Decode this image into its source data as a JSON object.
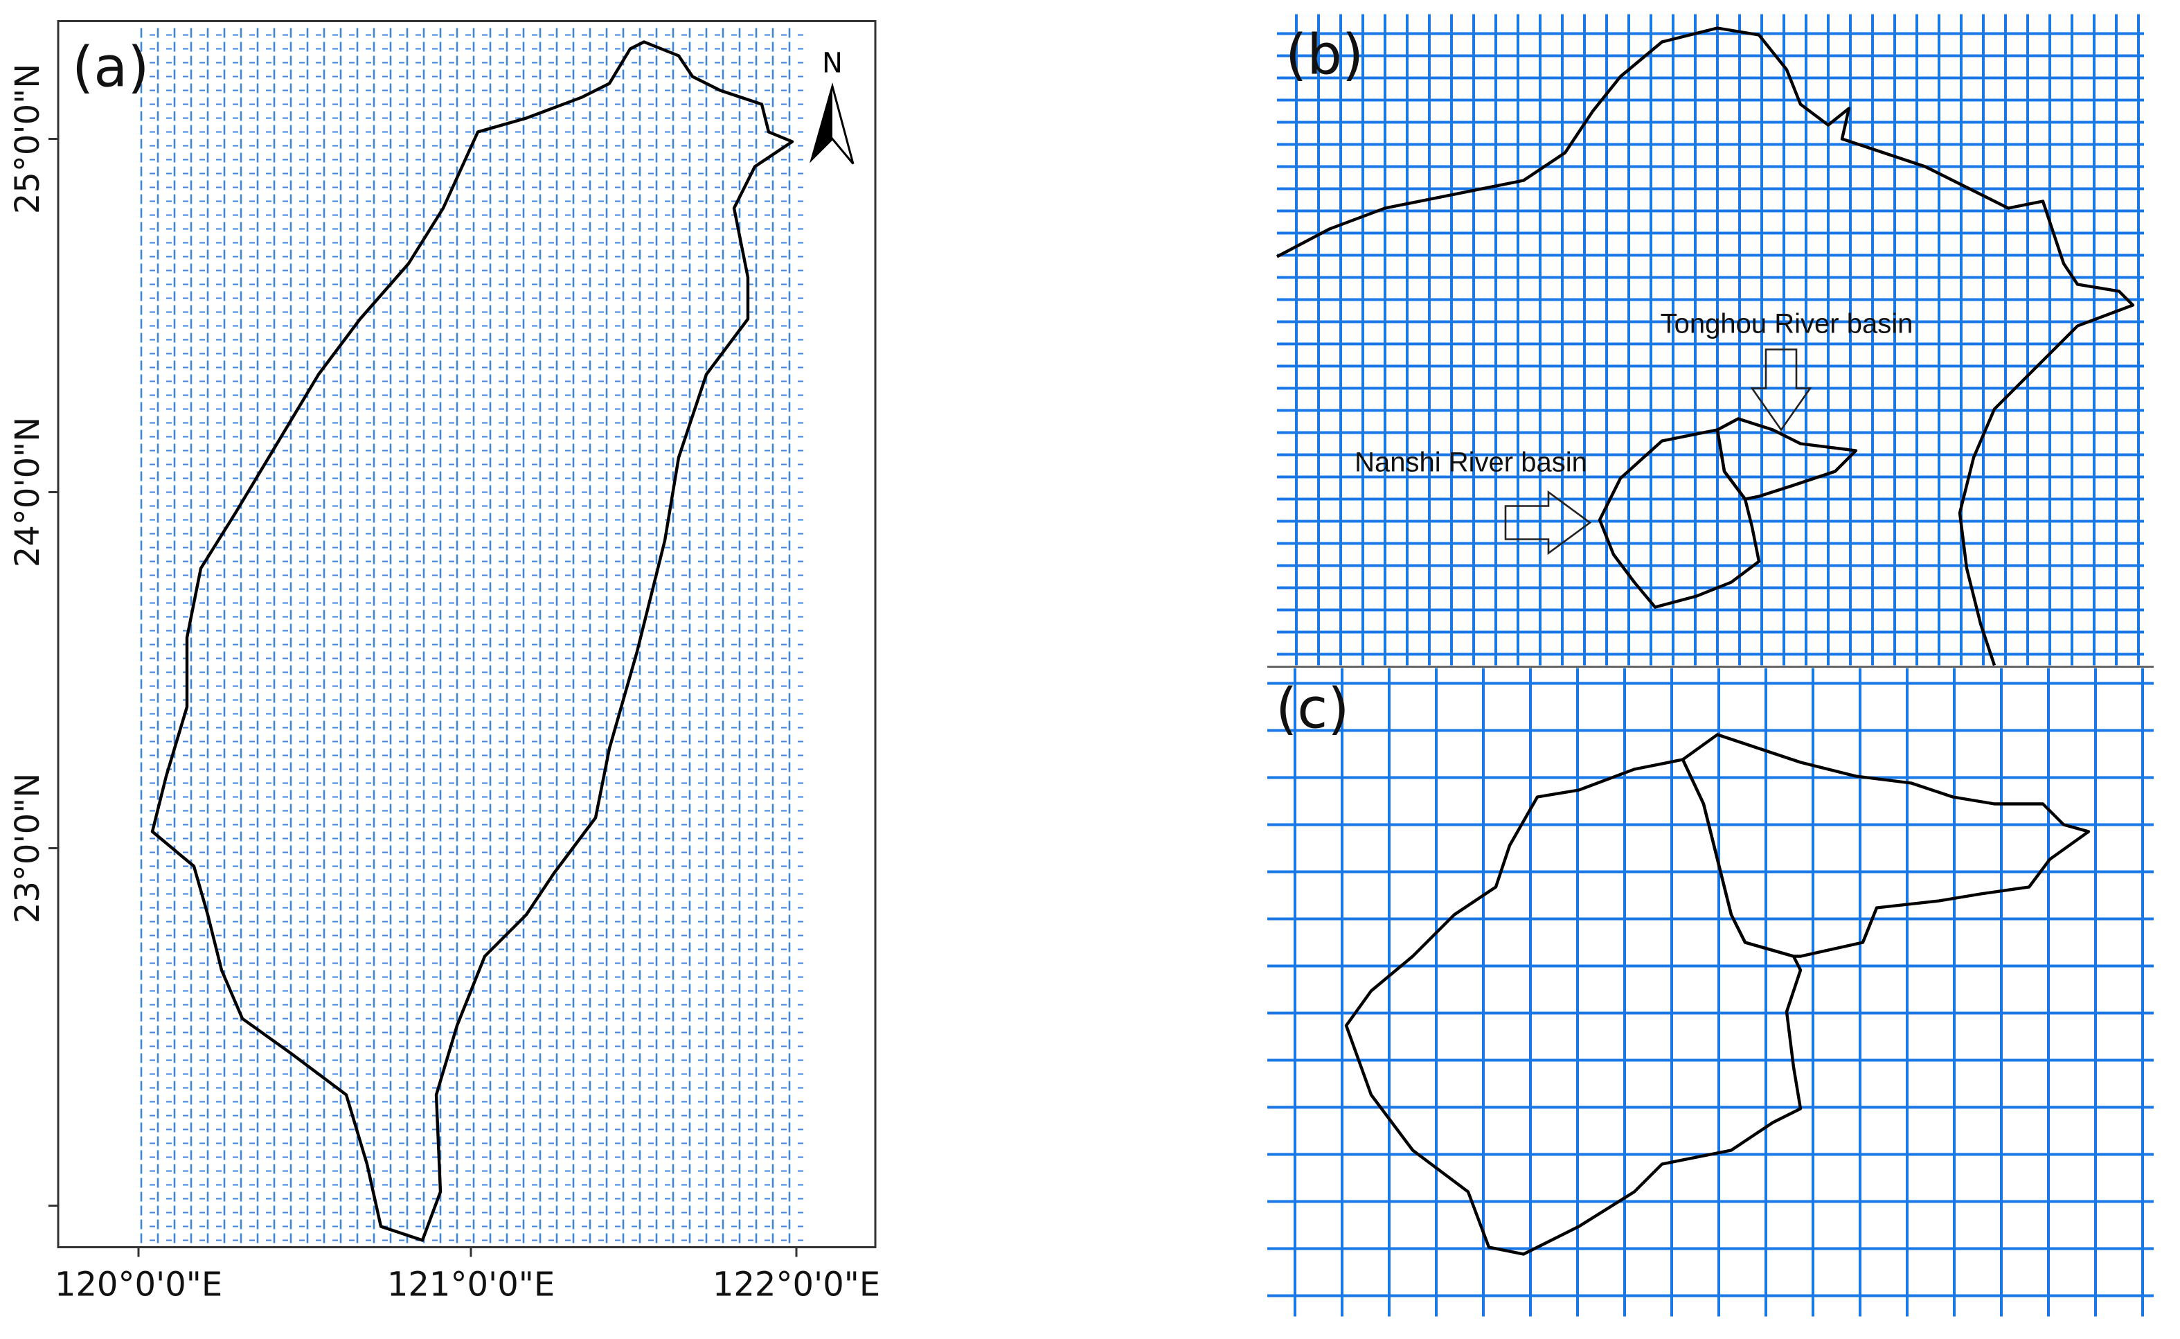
{
  "panels": [
    {
      "label": "(a)",
      "north": "N",
      "x_ticks": [
        "120°0'0\"E",
        "121°0'0\"E",
        "122°0'0\"E"
      ],
      "y_ticks": [
        "25°0'0\"N",
        "24°0'0\"N",
        "23°0'0\"N"
      ]
    },
    {
      "label": "(b)",
      "annotations": [
        "Tonghou River basin",
        "Nanshi River basin"
      ]
    },
    {
      "label": "(c)"
    }
  ]
}
